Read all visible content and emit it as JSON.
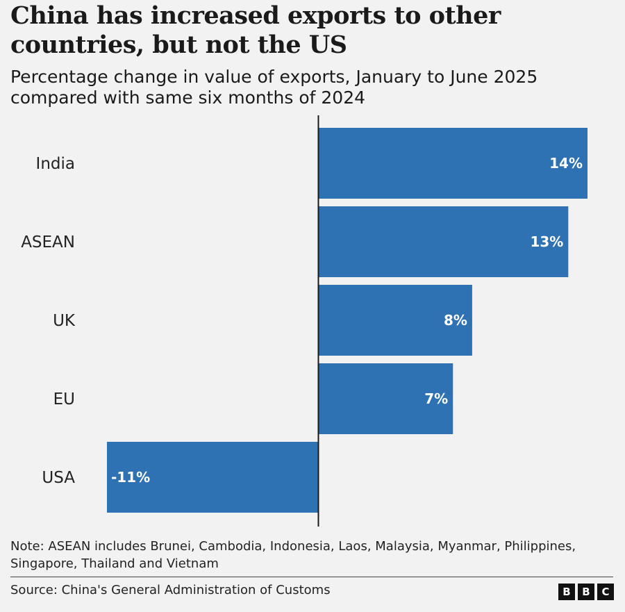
{
  "header": {
    "title": "China has increased exports to other countries, but not the US",
    "subtitle": "Percentage change in value of exports, January to June 2025 compared with same six months of 2024"
  },
  "chart_data": {
    "type": "bar",
    "orientation": "horizontal",
    "categories": [
      "India",
      "ASEAN",
      "UK",
      "EU",
      "USA"
    ],
    "values": [
      14,
      13,
      8,
      7,
      -11
    ],
    "value_labels": [
      "14%",
      "13%",
      "8%",
      "7%",
      "-11%"
    ],
    "xlim": [
      -11,
      14
    ],
    "grid": false,
    "bar_color": "#2e72b4",
    "zero_line_color": "#1a1a1a",
    "value_label_color": "#ffffff"
  },
  "footer": {
    "note": "Note: ASEAN includes Brunei, Cambodia, Indonesia, Laos, Malaysia, Myanmar, Philippines, Singapore, Thailand and Vietnam",
    "source": "Source: China's General Administration of Customs",
    "logo_letters": [
      "B",
      "B",
      "C"
    ]
  }
}
